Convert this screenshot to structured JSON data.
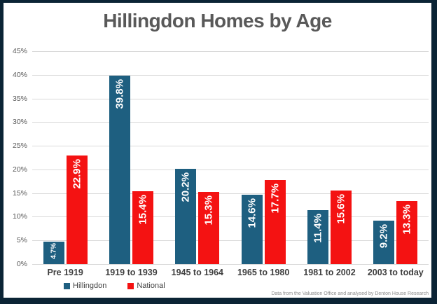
{
  "title": "Hillingdon Homes by Age",
  "source_note": "Data from the Valuation Office and analysed by Denton House Research",
  "colors": {
    "frame_border": "#0b2435",
    "background": "#ffffff",
    "hillingdon_bar": "#1e5f80",
    "national_bar": "#f41212",
    "gridline": "#d9d9d9",
    "title_text": "#595959",
    "axis_text": "#595959",
    "category_text": "#3f3f3f",
    "bar_label_text": "#ffffff",
    "source_text": "#8c8c8c"
  },
  "chart_data": {
    "type": "bar",
    "title": "Hillingdon Homes by Age",
    "categories": [
      "Pre 1919",
      "1919 to 1939",
      "1945 to 1964",
      "1965 to 1980",
      "1981 to 2002",
      "2003 to today"
    ],
    "series": [
      {
        "name": "Hillingdon",
        "color": "#1e5f80",
        "values": [
          4.7,
          39.8,
          20.2,
          14.6,
          11.4,
          9.2
        ],
        "labels": [
          "4.7%",
          "39.8%",
          "20.2%",
          "14.6%",
          "11.4%",
          "9.2%"
        ]
      },
      {
        "name": "National",
        "color": "#f41212",
        "values": [
          22.9,
          15.4,
          15.3,
          17.7,
          15.6,
          13.3
        ],
        "labels": [
          "22.9%",
          "15.4%",
          "15.3%",
          "17.7%",
          "15.6%",
          "13.3%"
        ]
      }
    ],
    "ylabel": "",
    "xlabel": "",
    "ylim": [
      0,
      45
    ],
    "ytick_step": 5,
    "ytick_labels": [
      "0%",
      "5%",
      "10%",
      "15%",
      "20%",
      "25%",
      "30%",
      "35%",
      "40%",
      "45%"
    ],
    "grid": true,
    "data_labels": "rotated-90-inside-end",
    "legend_position": "bottom"
  }
}
